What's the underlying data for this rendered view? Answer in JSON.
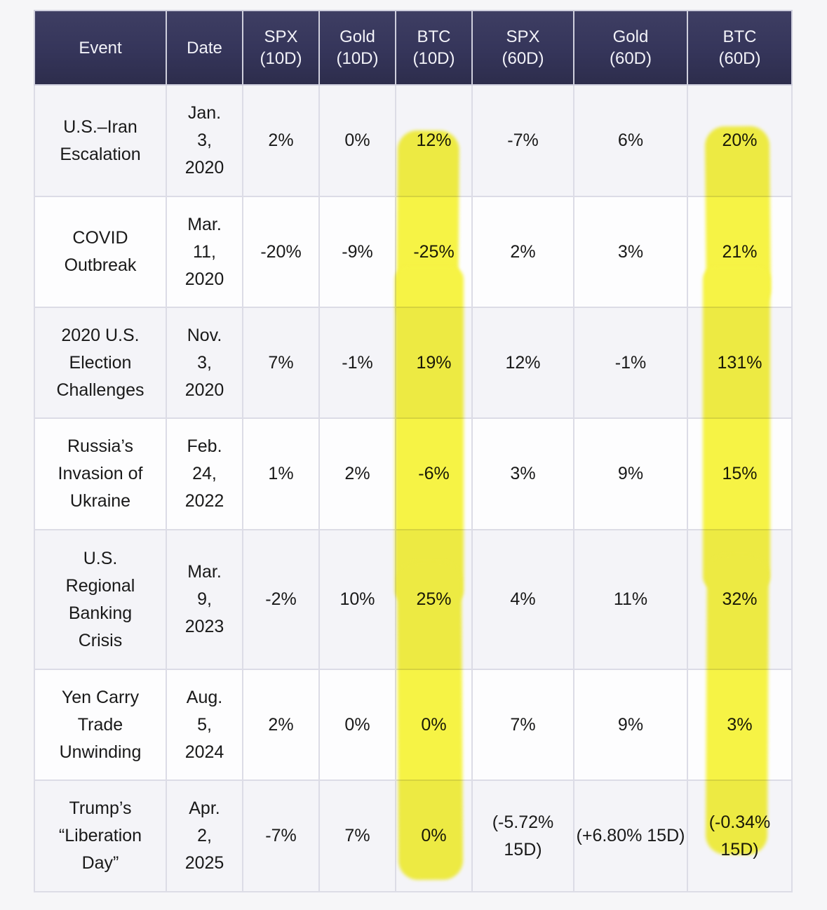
{
  "page": {
    "background": "#f6f6f8"
  },
  "table": {
    "header": [
      {
        "key": "event",
        "line1": "Event",
        "line2": ""
      },
      {
        "key": "date",
        "line1": "Date",
        "line2": ""
      },
      {
        "key": "spx-10d",
        "line1": "SPX",
        "line2": "(10D)"
      },
      {
        "key": "gold-10d",
        "line1": "Gold",
        "line2": "(10D)"
      },
      {
        "key": "btc-10d",
        "line1": "BTC",
        "line2": "(10D)"
      },
      {
        "key": "spx-60d",
        "line1": "SPX",
        "line2": "(60D)"
      },
      {
        "key": "gold-60d",
        "line1": "Gold",
        "line2": "(60D)"
      },
      {
        "key": "btc-60d",
        "line1": "BTC",
        "line2": "(60D)"
      }
    ],
    "rows": [
      {
        "event": [
          "U.S.–Iran",
          "Escalation"
        ],
        "date": [
          "Jan.",
          "3,",
          "2020"
        ],
        "values": [
          "2%",
          "0%",
          "12%",
          "-7%",
          "6%",
          "20%"
        ]
      },
      {
        "event": [
          "COVID",
          "Outbreak"
        ],
        "date": [
          "Mar.",
          "11,",
          "2020"
        ],
        "values": [
          "-20%",
          "-9%",
          "-25%",
          "2%",
          "3%",
          "21%"
        ]
      },
      {
        "event": [
          "2020 U.S.",
          "Election",
          "Challenges"
        ],
        "date": [
          "Nov.",
          "3,",
          "2020"
        ],
        "values": [
          "7%",
          "-1%",
          "19%",
          "12%",
          "-1%",
          "131%"
        ]
      },
      {
        "event": [
          "Russia’s",
          "Invasion of",
          "Ukraine"
        ],
        "date": [
          "Feb.",
          "24,",
          "2022"
        ],
        "values": [
          "1%",
          "2%",
          "-6%",
          "3%",
          "9%",
          "15%"
        ]
      },
      {
        "event": [
          "U.S.",
          "Regional",
          "Banking",
          "Crisis"
        ],
        "date": [
          "Mar.",
          "9,",
          "2023"
        ],
        "values": [
          "-2%",
          "10%",
          "25%",
          "4%",
          "11%",
          "32%"
        ]
      },
      {
        "event": [
          "Yen Carry",
          "Trade",
          "Unwinding"
        ],
        "date": [
          "Aug.",
          "5,",
          "2024"
        ],
        "values": [
          "2%",
          "0%",
          "0%",
          "7%",
          "9%",
          "3%"
        ]
      },
      {
        "event": [
          "Trump’s",
          "“Liberation",
          "Day”"
        ],
        "date": [
          "Apr.",
          "2,",
          "2025"
        ],
        "values": [
          "-7%",
          "7%",
          "0%",
          "(-5.72% 15D)",
          "(+6.80% 15D)",
          "(-0.34% 15D)"
        ]
      }
    ]
  },
  "highlights": {
    "color": "#f8f545",
    "marked_columns": [
      "BTC (10D)",
      "BTC (60D)"
    ]
  }
}
